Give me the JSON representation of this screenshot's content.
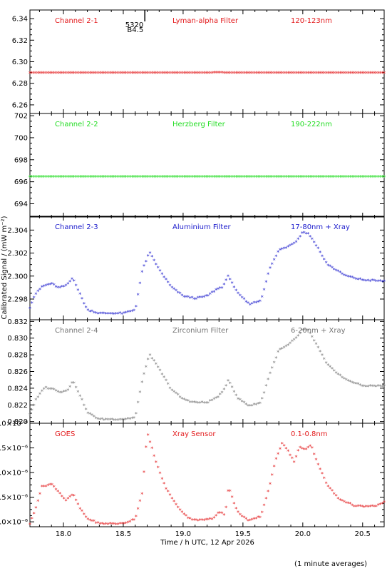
{
  "chart_data": {
    "type": "scatter",
    "xlabel": "Time / h UTC, 12 Apr 2026",
    "ylabel": "Calibrated Signal / (mW m⁻²)",
    "xlim": [
      17.72,
      20.68
    ],
    "xticks": [
      "18.0",
      "18.5",
      "19.0",
      "19.5",
      "20.0",
      "20.5"
    ],
    "footnote": "(1 minute averages)",
    "colors": {
      "red": "#e31a1c",
      "green": "#22dd22",
      "blue": "#1a1acc",
      "grey": "#777777"
    },
    "panels": [
      {
        "channel": "Channel 2-1",
        "filter": "Lyman-alpha Filter",
        "band": "120-123nm",
        "color": "#e31a1c",
        "ylim": [
          6.252,
          6.348
        ],
        "yticks": [
          "6.26",
          "6.28",
          "6.30",
          "6.32",
          "6.34"
        ],
        "annotations": [
          "5320",
          "B4.5"
        ],
        "series": [
          [
            17.72,
            6.289
          ],
          [
            18.5,
            6.289
          ],
          [
            19.2,
            6.289
          ],
          [
            19.3,
            6.2895
          ],
          [
            19.38,
            6.289
          ],
          [
            20.68,
            6.289
          ]
        ]
      },
      {
        "channel": "Channel 2-2",
        "filter": "Herzberg Filter",
        "band": "190-222nm",
        "color": "#22dd22",
        "ylim": [
          692.8,
          702.2
        ],
        "yticks": [
          "694",
          "696",
          "698",
          "700",
          "702"
        ],
        "series": [
          [
            17.72,
            696.4
          ],
          [
            20.68,
            696.4
          ]
        ]
      },
      {
        "channel": "Channel 2-3",
        "filter": "Aluminium Filter",
        "band": "17-80nm + Xray",
        "color": "#1a1acc",
        "ylim": [
          2.2962,
          2.3052
        ],
        "yticks": [
          "2.298",
          "2.300",
          "2.302",
          "2.304"
        ],
        "series": [
          [
            17.72,
            2.2972
          ],
          [
            17.76,
            2.2983
          ],
          [
            17.82,
            2.299
          ],
          [
            17.9,
            2.2993
          ],
          [
            17.96,
            2.2989
          ],
          [
            18.02,
            2.2991
          ],
          [
            18.08,
            2.2998
          ],
          [
            18.14,
            2.2983
          ],
          [
            18.2,
            2.297
          ],
          [
            18.3,
            2.2967
          ],
          [
            18.5,
            2.2967
          ],
          [
            18.6,
            2.297
          ],
          [
            18.66,
            2.3005
          ],
          [
            18.72,
            2.302
          ],
          [
            18.8,
            2.3005
          ],
          [
            18.9,
            2.299
          ],
          [
            19.0,
            2.2982
          ],
          [
            19.1,
            2.298
          ],
          [
            19.2,
            2.2982
          ],
          [
            19.28,
            2.2988
          ],
          [
            19.33,
            2.299
          ],
          [
            19.38,
            2.3
          ],
          [
            19.45,
            2.2985
          ],
          [
            19.55,
            2.2975
          ],
          [
            19.65,
            2.2978
          ],
          [
            19.72,
            2.3005
          ],
          [
            19.8,
            2.3022
          ],
          [
            19.87,
            2.3025
          ],
          [
            19.95,
            2.303
          ],
          [
            20.0,
            2.3038
          ],
          [
            20.05,
            2.3036
          ],
          [
            20.12,
            2.3025
          ],
          [
            20.2,
            2.301
          ],
          [
            20.35,
            2.3
          ],
          [
            20.5,
            2.2996
          ],
          [
            20.68,
            2.2995
          ]
        ]
      },
      {
        "channel": "Channel 2-4",
        "filter": "Zirconium Filter",
        "band": "6-20nm + Xray",
        "color": "#777777",
        "ylim": [
          0.8198,
          0.8322
        ],
        "yticks": [
          "0.820",
          "0.822",
          "0.824",
          "0.826",
          "0.828",
          "0.830",
          "0.832"
        ],
        "series": [
          [
            17.72,
            0.8208
          ],
          [
            17.77,
            0.8225
          ],
          [
            17.84,
            0.824
          ],
          [
            17.92,
            0.8238
          ],
          [
            17.98,
            0.8234
          ],
          [
            18.04,
            0.8238
          ],
          [
            18.08,
            0.8248
          ],
          [
            18.14,
            0.823
          ],
          [
            18.2,
            0.821
          ],
          [
            18.3,
            0.8202
          ],
          [
            18.5,
            0.8202
          ],
          [
            18.6,
            0.8204
          ],
          [
            18.66,
            0.825
          ],
          [
            18.72,
            0.828
          ],
          [
            18.8,
            0.8262
          ],
          [
            18.9,
            0.8238
          ],
          [
            19.0,
            0.8226
          ],
          [
            19.1,
            0.8222
          ],
          [
            19.2,
            0.8222
          ],
          [
            19.28,
            0.8228
          ],
          [
            19.33,
            0.8234
          ],
          [
            19.38,
            0.825
          ],
          [
            19.45,
            0.8228
          ],
          [
            19.55,
            0.8218
          ],
          [
            19.65,
            0.8222
          ],
          [
            19.72,
            0.8255
          ],
          [
            19.8,
            0.8285
          ],
          [
            19.87,
            0.829
          ],
          [
            19.95,
            0.83
          ],
          [
            20.0,
            0.831
          ],
          [
            20.05,
            0.8308
          ],
          [
            20.12,
            0.829
          ],
          [
            20.2,
            0.8268
          ],
          [
            20.35,
            0.825
          ],
          [
            20.5,
            0.8242
          ],
          [
            20.68,
            0.8242
          ]
        ]
      },
      {
        "channel": "GOES",
        "filter": "Xray Sensor",
        "band": "0.1-0.8nm",
        "color": "#e31a1c",
        "ylim": [
          2.9e-06,
          5e-06
        ],
        "yticks": [
          "3.0×10⁻⁶",
          "3.5×10⁻⁶",
          "4.0×10⁻⁶",
          "4.5×10⁻⁶",
          "5.0×10⁻⁶"
        ],
        "series": [
          [
            17.72,
            2.95e-06
          ],
          [
            17.76,
            3.2e-06
          ],
          [
            17.82,
            3.7e-06
          ],
          [
            17.9,
            3.75e-06
          ],
          [
            17.96,
            3.6e-06
          ],
          [
            18.02,
            3.42e-06
          ],
          [
            18.08,
            3.55e-06
          ],
          [
            18.14,
            3.25e-06
          ],
          [
            18.2,
            3.05e-06
          ],
          [
            18.3,
            2.95e-06
          ],
          [
            18.5,
            2.95e-06
          ],
          [
            18.6,
            3.05e-06
          ],
          [
            18.66,
            3.6e-06
          ],
          [
            18.7,
            4.8e-06
          ],
          [
            18.78,
            4.15e-06
          ],
          [
            18.85,
            3.7e-06
          ],
          [
            18.95,
            3.3e-06
          ],
          [
            19.05,
            3.05e-06
          ],
          [
            19.15,
            3.02e-06
          ],
          [
            19.25,
            3.05e-06
          ],
          [
            19.3,
            3.2e-06
          ],
          [
            19.35,
            3.12e-06
          ],
          [
            19.38,
            3.7e-06
          ],
          [
            19.45,
            3.2e-06
          ],
          [
            19.55,
            3e-06
          ],
          [
            19.65,
            3.1e-06
          ],
          [
            19.72,
            3.7e-06
          ],
          [
            19.78,
            4.3e-06
          ],
          [
            19.83,
            4.6e-06
          ],
          [
            19.87,
            4.45e-06
          ],
          [
            19.93,
            4.2e-06
          ],
          [
            19.97,
            4.5e-06
          ],
          [
            20.02,
            4.45e-06
          ],
          [
            20.07,
            4.55e-06
          ],
          [
            20.12,
            4.2e-06
          ],
          [
            20.2,
            3.75e-06
          ],
          [
            20.3,
            3.45e-06
          ],
          [
            20.45,
            3.3e-06
          ],
          [
            20.6,
            3.3e-06
          ],
          [
            20.68,
            3.38e-06
          ]
        ]
      }
    ]
  }
}
